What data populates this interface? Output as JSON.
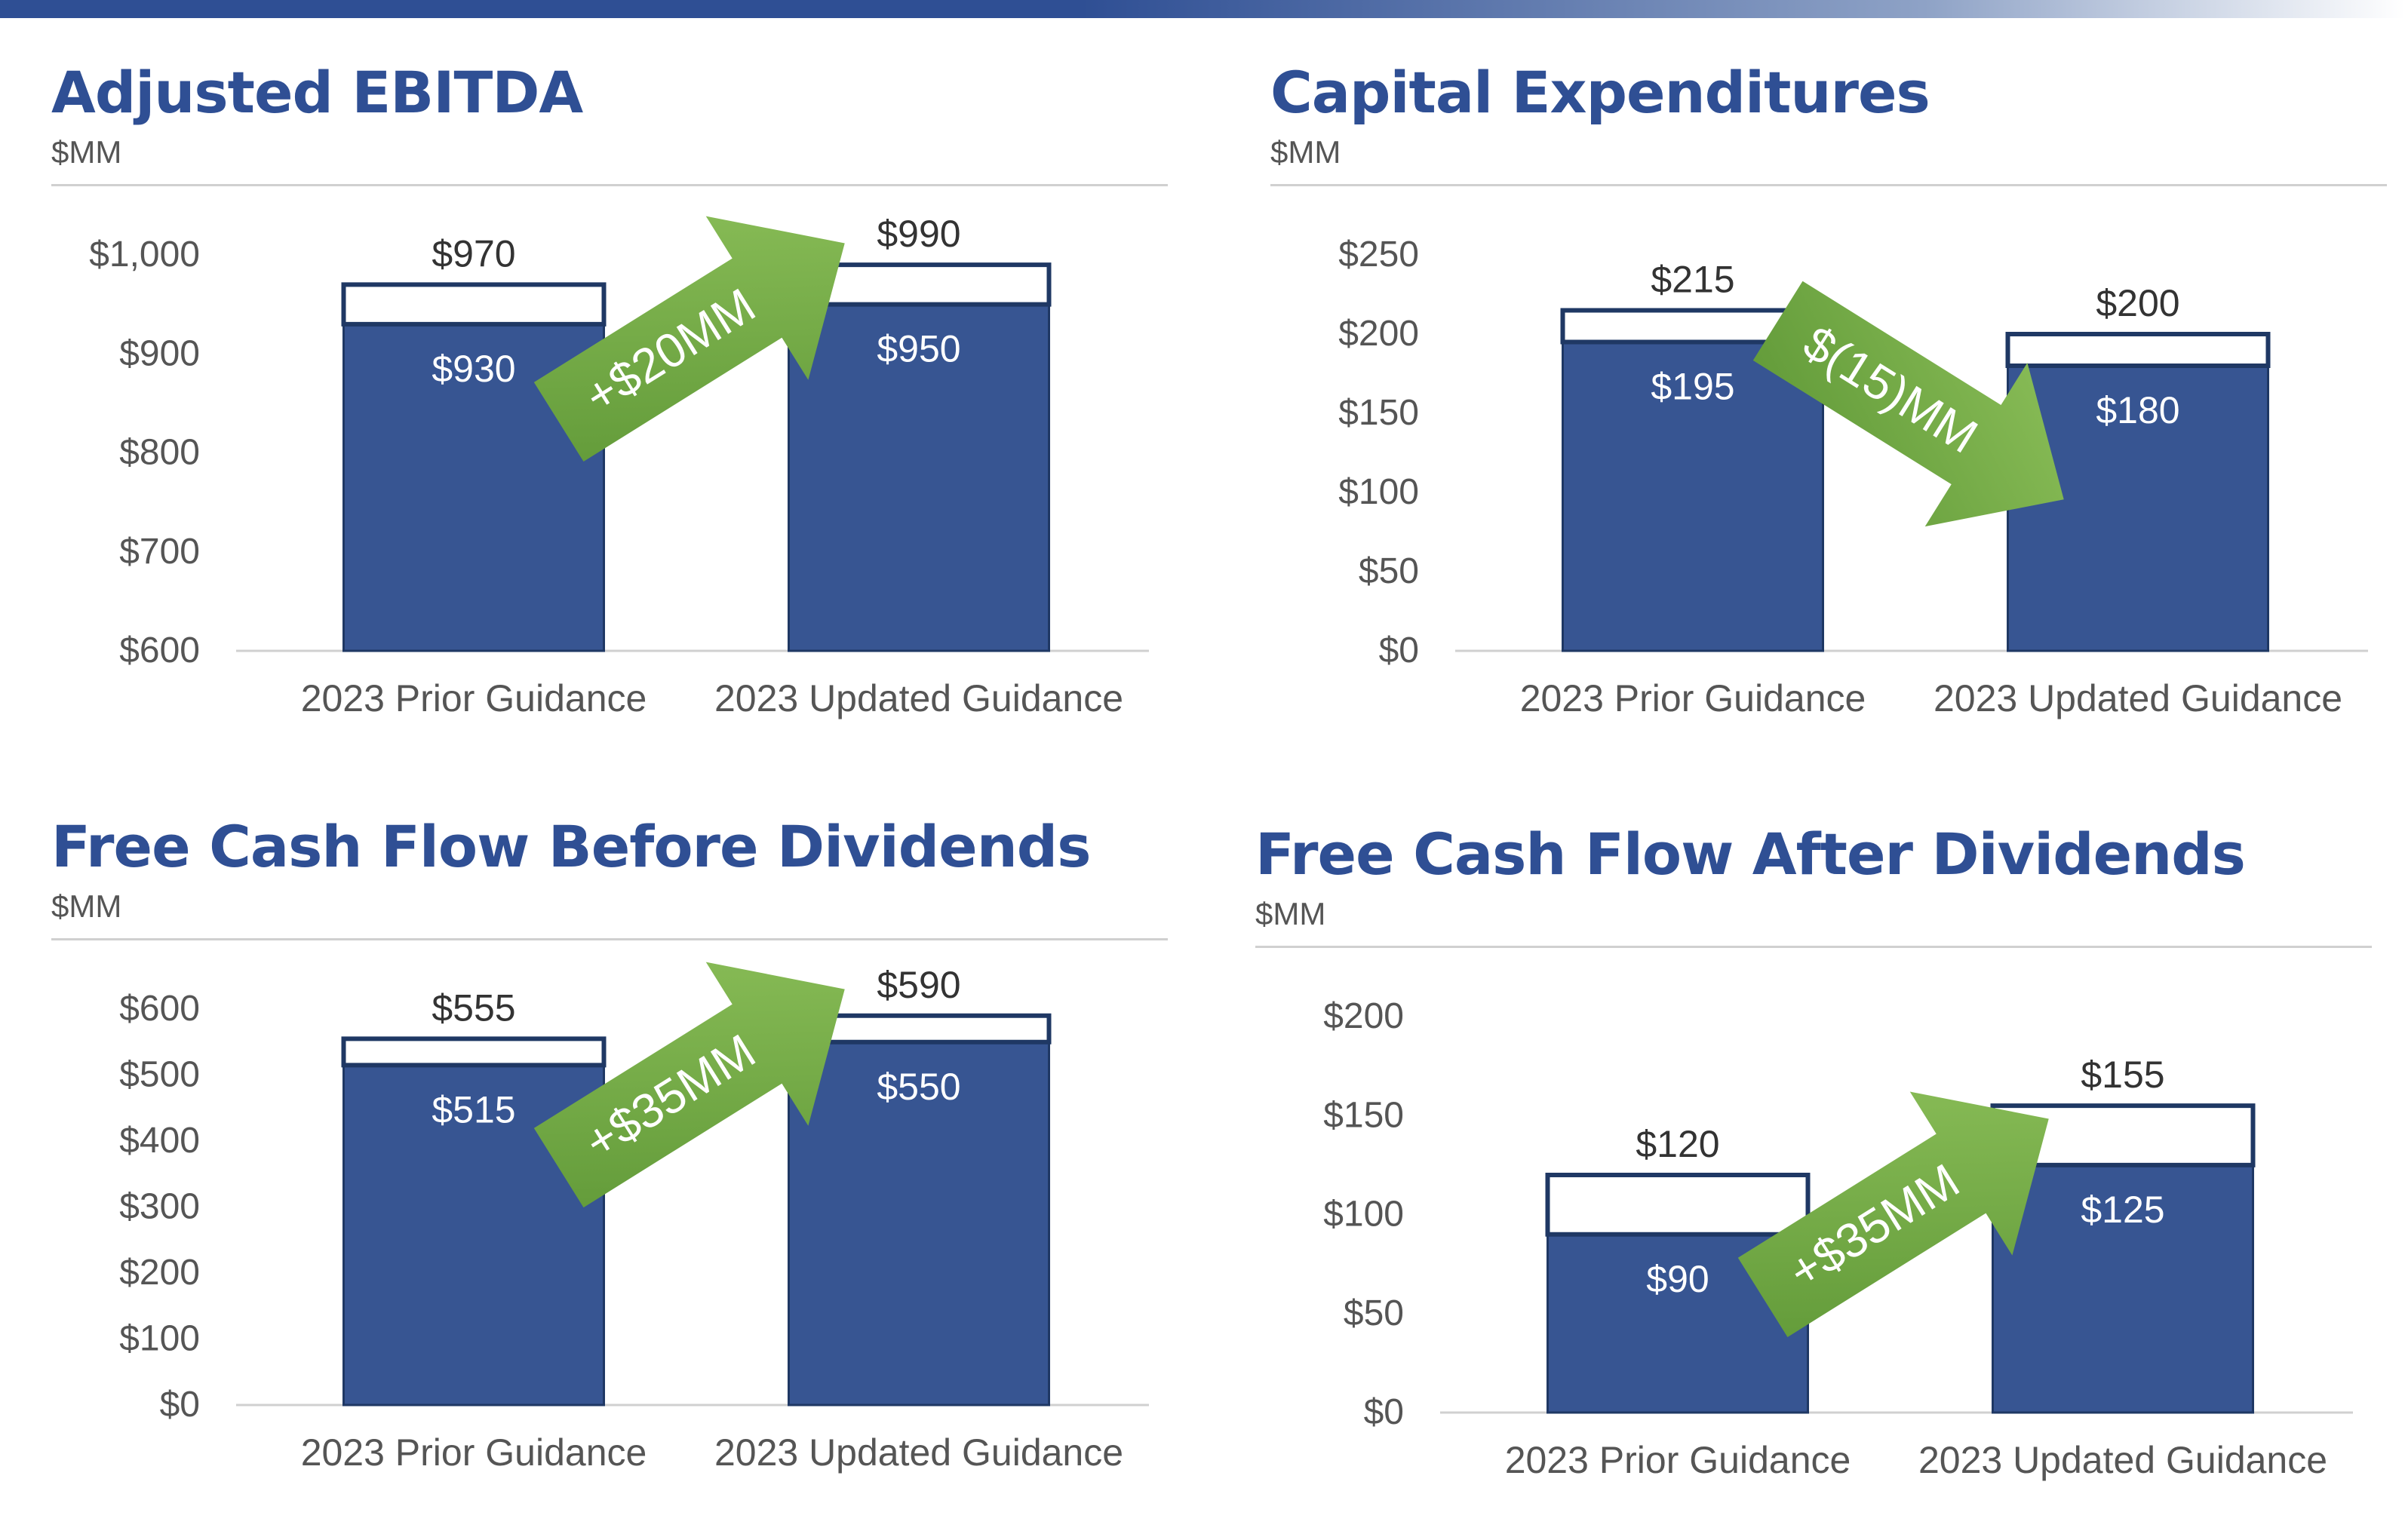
{
  "chart_data": [
    {
      "type": "bar",
      "title": "Adjusted EBITDA",
      "unit": "$MM",
      "categories": [
        "2023 Prior Guidance",
        "2023 Updated Guidance"
      ],
      "series": [
        {
          "role": "low",
          "values": [
            930,
            950
          ],
          "labels": [
            "$930",
            "$950"
          ]
        },
        {
          "role": "high",
          "values": [
            970,
            990
          ],
          "labels": [
            "$970",
            "$990"
          ]
        }
      ],
      "ylim": [
        600,
        1000
      ],
      "yticks": [
        600,
        700,
        800,
        900,
        1000
      ],
      "ytick_labels": [
        "$600",
        "$700",
        "$800",
        "$900",
        "$1,000"
      ],
      "annotation": {
        "text": "+$20MM",
        "direction": "up"
      }
    },
    {
      "type": "bar",
      "title": "Capital Expenditures",
      "unit": "$MM",
      "categories": [
        "2023 Prior Guidance",
        "2023 Updated Guidance"
      ],
      "series": [
        {
          "role": "low",
          "values": [
            195,
            180
          ],
          "labels": [
            "$195",
            "$180"
          ]
        },
        {
          "role": "high",
          "values": [
            215,
            200
          ],
          "labels": [
            "$215",
            "$200"
          ]
        }
      ],
      "ylim": [
        0,
        250
      ],
      "yticks": [
        0,
        50,
        100,
        150,
        200,
        250
      ],
      "ytick_labels": [
        "$0",
        "$50",
        "$100",
        "$150",
        "$200",
        "$250"
      ],
      "annotation": {
        "text": "$(15)MM",
        "direction": "down"
      }
    },
    {
      "type": "bar",
      "title": "Free Cash Flow Before Dividends",
      "unit": "$MM",
      "categories": [
        "2023 Prior Guidance",
        "2023 Updated Guidance"
      ],
      "series": [
        {
          "role": "low",
          "values": [
            515,
            550
          ],
          "labels": [
            "$515",
            "$550"
          ]
        },
        {
          "role": "high",
          "values": [
            555,
            590
          ],
          "labels": [
            "$555",
            "$590"
          ]
        }
      ],
      "ylim": [
        0,
        600
      ],
      "yticks": [
        0,
        100,
        200,
        300,
        400,
        500,
        600
      ],
      "ytick_labels": [
        "$0",
        "$100",
        "$200",
        "$300",
        "$400",
        "$500",
        "$600"
      ],
      "annotation": {
        "text": "+$35MM",
        "direction": "up"
      }
    },
    {
      "type": "bar",
      "title": "Free Cash Flow After Dividends",
      "unit": "$MM",
      "categories": [
        "2023 Prior Guidance",
        "2023 Updated Guidance"
      ],
      "series": [
        {
          "role": "low",
          "values": [
            90,
            125
          ],
          "labels": [
            "$90",
            "$125"
          ]
        },
        {
          "role": "high",
          "values": [
            120,
            155
          ],
          "labels": [
            "$120",
            "$155"
          ]
        }
      ],
      "ylim": [
        0,
        200
      ],
      "yticks": [
        0,
        50,
        100,
        150,
        200
      ],
      "ytick_labels": [
        "$0",
        "$50",
        "$100",
        "$150",
        "$200"
      ],
      "annotation": {
        "text": "+$35MM",
        "direction": "up"
      }
    }
  ],
  "colors": {
    "bar_fill": "#375592",
    "bar_outline": "#1f3864",
    "title": "#2f4f94",
    "arrow_light": "#8dc05a",
    "arrow_dark": "#5e9736",
    "axis_text": "#555555",
    "value_text": "#333333"
  }
}
